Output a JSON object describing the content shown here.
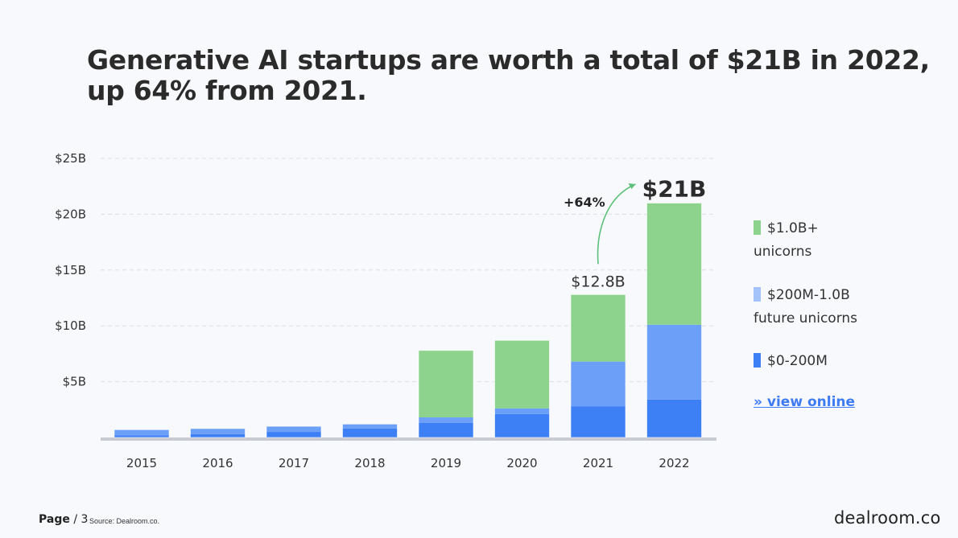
{
  "title": {
    "line1": "Generative AI startups are worth a total of $21B in 2022,",
    "line2": "up 64% from 2021."
  },
  "chart_data": {
    "type": "bar",
    "stacked": true,
    "categories": [
      "2015",
      "2016",
      "2017",
      "2018",
      "2019",
      "2020",
      "2021",
      "2022"
    ],
    "series": [
      {
        "name": "$0-200M",
        "color": "#3d7ff5",
        "values": [
          0.2,
          0.3,
          0.5,
          0.8,
          1.3,
          2.1,
          2.8,
          3.4
        ]
      },
      {
        "name": "$200M-1.0B future unicorns",
        "color": "#6b9ff8",
        "values": [
          0.5,
          0.5,
          0.5,
          0.4,
          0.5,
          0.5,
          4.0,
          6.7
        ]
      },
      {
        "name": "$1.0B+ unicorns",
        "color": "#8dd38e",
        "values": [
          0.0,
          0.0,
          0.0,
          0.0,
          6.0,
          6.1,
          6.0,
          10.9
        ]
      }
    ],
    "ylim": [
      0,
      25
    ],
    "yticks": [
      {
        "value": 5,
        "label": "$5B"
      },
      {
        "value": 10,
        "label": "$10B"
      },
      {
        "value": 15,
        "label": "$15B"
      },
      {
        "value": 20,
        "label": "$20B"
      },
      {
        "value": 25,
        "label": "$25B"
      }
    ],
    "grid": true,
    "annotations": {
      "label_2021": "$12.8B",
      "label_2022": "$21B",
      "growth": "+64%"
    },
    "legend_position": "right"
  },
  "legend": [
    {
      "line1": "$1.0B+",
      "line2": "unicorns",
      "color": "#8dd38e"
    },
    {
      "line1": "$200M-1.0B",
      "line2": "future unicorns",
      "color": "#a3c3fa"
    },
    {
      "line1": "$0-200M",
      "line2": "",
      "color": "#3d7ff5"
    }
  ],
  "view_online": "» view online",
  "footer": {
    "page_label": "Page",
    "page_number": "/ 3",
    "source": "Source: Dealroom.co."
  },
  "brand": "dealroom.co"
}
